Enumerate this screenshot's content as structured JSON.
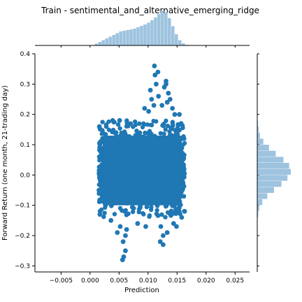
{
  "chart_data": {
    "type": "scatter",
    "title": "Train - sentimental_and_alternative_emerging_ridge",
    "xlabel": "Prediction",
    "ylabel": "Forward Return (one month, 21-trading day)",
    "xlim": [
      -0.0095,
      0.0275
    ],
    "ylim": [
      -0.32,
      0.4
    ],
    "xticks": [
      "−0.005",
      "0.000",
      "0.005",
      "0.010",
      "0.015",
      "0.020",
      "0.025"
    ],
    "xtick_values": [
      -0.005,
      0.0,
      0.005,
      0.01,
      0.015,
      0.02,
      0.025
    ],
    "yticks": [
      "−0.3",
      "−0.2",
      "−0.1",
      "0.0",
      "0.1",
      "0.2",
      "0.3",
      "0.4"
    ],
    "ytick_values": [
      -0.3,
      -0.2,
      -0.1,
      0.0,
      0.1,
      0.2,
      0.3,
      0.4
    ],
    "grid": false,
    "legend": "none",
    "scatter_color": "#1f77b4",
    "hist_color": "#9ec3df",
    "scatter_dense_region": {
      "x_range": [
        0.0015,
        0.0163
      ],
      "core_y_range": [
        -0.12,
        0.16
      ]
    },
    "scatter_outlier_points": [
      [
        0.0111,
        0.36
      ],
      [
        0.0117,
        0.34
      ],
      [
        0.0112,
        0.33
      ],
      [
        0.0131,
        0.31
      ],
      [
        0.0114,
        0.3
      ],
      [
        0.0131,
        0.3
      ],
      [
        0.0128,
        0.29
      ],
      [
        0.0104,
        0.28
      ],
      [
        0.0135,
        0.27
      ],
      [
        0.0118,
        0.26
      ],
      [
        0.0106,
        0.25
      ],
      [
        0.0138,
        0.25
      ],
      [
        0.0133,
        0.24
      ],
      [
        0.011,
        0.23
      ],
      [
        0.0124,
        0.23
      ],
      [
        0.0094,
        0.22
      ],
      [
        0.0142,
        0.22
      ],
      [
        0.0101,
        0.21
      ],
      [
        0.0146,
        0.2
      ],
      [
        0.0154,
        0.2
      ],
      [
        0.0039,
        0.18
      ],
      [
        0.0051,
        0.18
      ],
      [
        0.0064,
        0.17
      ],
      [
        0.0028,
        0.16
      ],
      [
        0.0157,
        0.17
      ],
      [
        0.0016,
        0.16
      ],
      [
        0.0022,
        0.14
      ],
      [
        0.0017,
        0.1
      ],
      [
        0.0162,
        0.12
      ],
      [
        0.0161,
        0.03
      ],
      [
        0.0017,
        -0.13
      ],
      [
        0.0036,
        -0.15
      ],
      [
        0.0052,
        -0.17
      ],
      [
        0.0047,
        -0.19
      ],
      [
        0.0063,
        -0.18
      ],
      [
        0.0061,
        -0.2
      ],
      [
        0.0057,
        -0.22
      ],
      [
        0.0061,
        -0.25
      ],
      [
        0.0058,
        -0.27
      ],
      [
        0.0056,
        -0.28
      ],
      [
        0.0122,
        -0.17
      ],
      [
        0.0126,
        -0.2
      ],
      [
        0.0121,
        -0.22
      ],
      [
        0.0126,
        -0.23
      ],
      [
        0.0133,
        -0.19
      ],
      [
        0.0144,
        -0.16
      ],
      [
        0.0149,
        -0.17
      ],
      [
        0.0158,
        -0.14
      ],
      [
        0.0163,
        -0.12
      ],
      [
        0.0096,
        -0.17
      ],
      [
        0.0082,
        -0.16
      ]
    ],
    "x_marginal_hist": {
      "bins": [
        [
          0.0008,
          0.05
        ],
        [
          0.0014,
          0.1
        ],
        [
          0.002,
          0.15
        ],
        [
          0.0026,
          0.2
        ],
        [
          0.0032,
          0.25
        ],
        [
          0.0038,
          0.3
        ],
        [
          0.0044,
          0.35
        ],
        [
          0.005,
          0.4
        ],
        [
          0.0056,
          0.42
        ],
        [
          0.0062,
          0.44
        ],
        [
          0.0068,
          0.46
        ],
        [
          0.0074,
          0.48
        ],
        [
          0.008,
          0.52
        ],
        [
          0.0086,
          0.56
        ],
        [
          0.0092,
          0.6
        ],
        [
          0.0098,
          0.65
        ],
        [
          0.0104,
          0.72
        ],
        [
          0.011,
          0.8
        ],
        [
          0.0116,
          0.9
        ],
        [
          0.0122,
          1.0
        ],
        [
          0.0128,
          0.95
        ],
        [
          0.0134,
          0.78
        ],
        [
          0.014,
          0.55
        ],
        [
          0.0146,
          0.32
        ],
        [
          0.0152,
          0.15
        ],
        [
          0.0158,
          0.06
        ],
        [
          0.0164,
          0.02
        ]
      ]
    },
    "y_marginal_hist": {
      "bins": [
        [
          -0.14,
          0.03
        ],
        [
          -0.12,
          0.06
        ],
        [
          -0.1,
          0.15
        ],
        [
          -0.08,
          0.3
        ],
        [
          -0.06,
          0.5
        ],
        [
          -0.04,
          0.72
        ],
        [
          -0.02,
          0.9
        ],
        [
          0.0,
          1.0
        ],
        [
          0.02,
          0.95
        ],
        [
          0.04,
          0.78
        ],
        [
          0.06,
          0.55
        ],
        [
          0.08,
          0.35
        ],
        [
          0.1,
          0.18
        ],
        [
          0.12,
          0.08
        ],
        [
          0.14,
          0.04
        ],
        [
          0.16,
          0.02
        ]
      ]
    }
  }
}
